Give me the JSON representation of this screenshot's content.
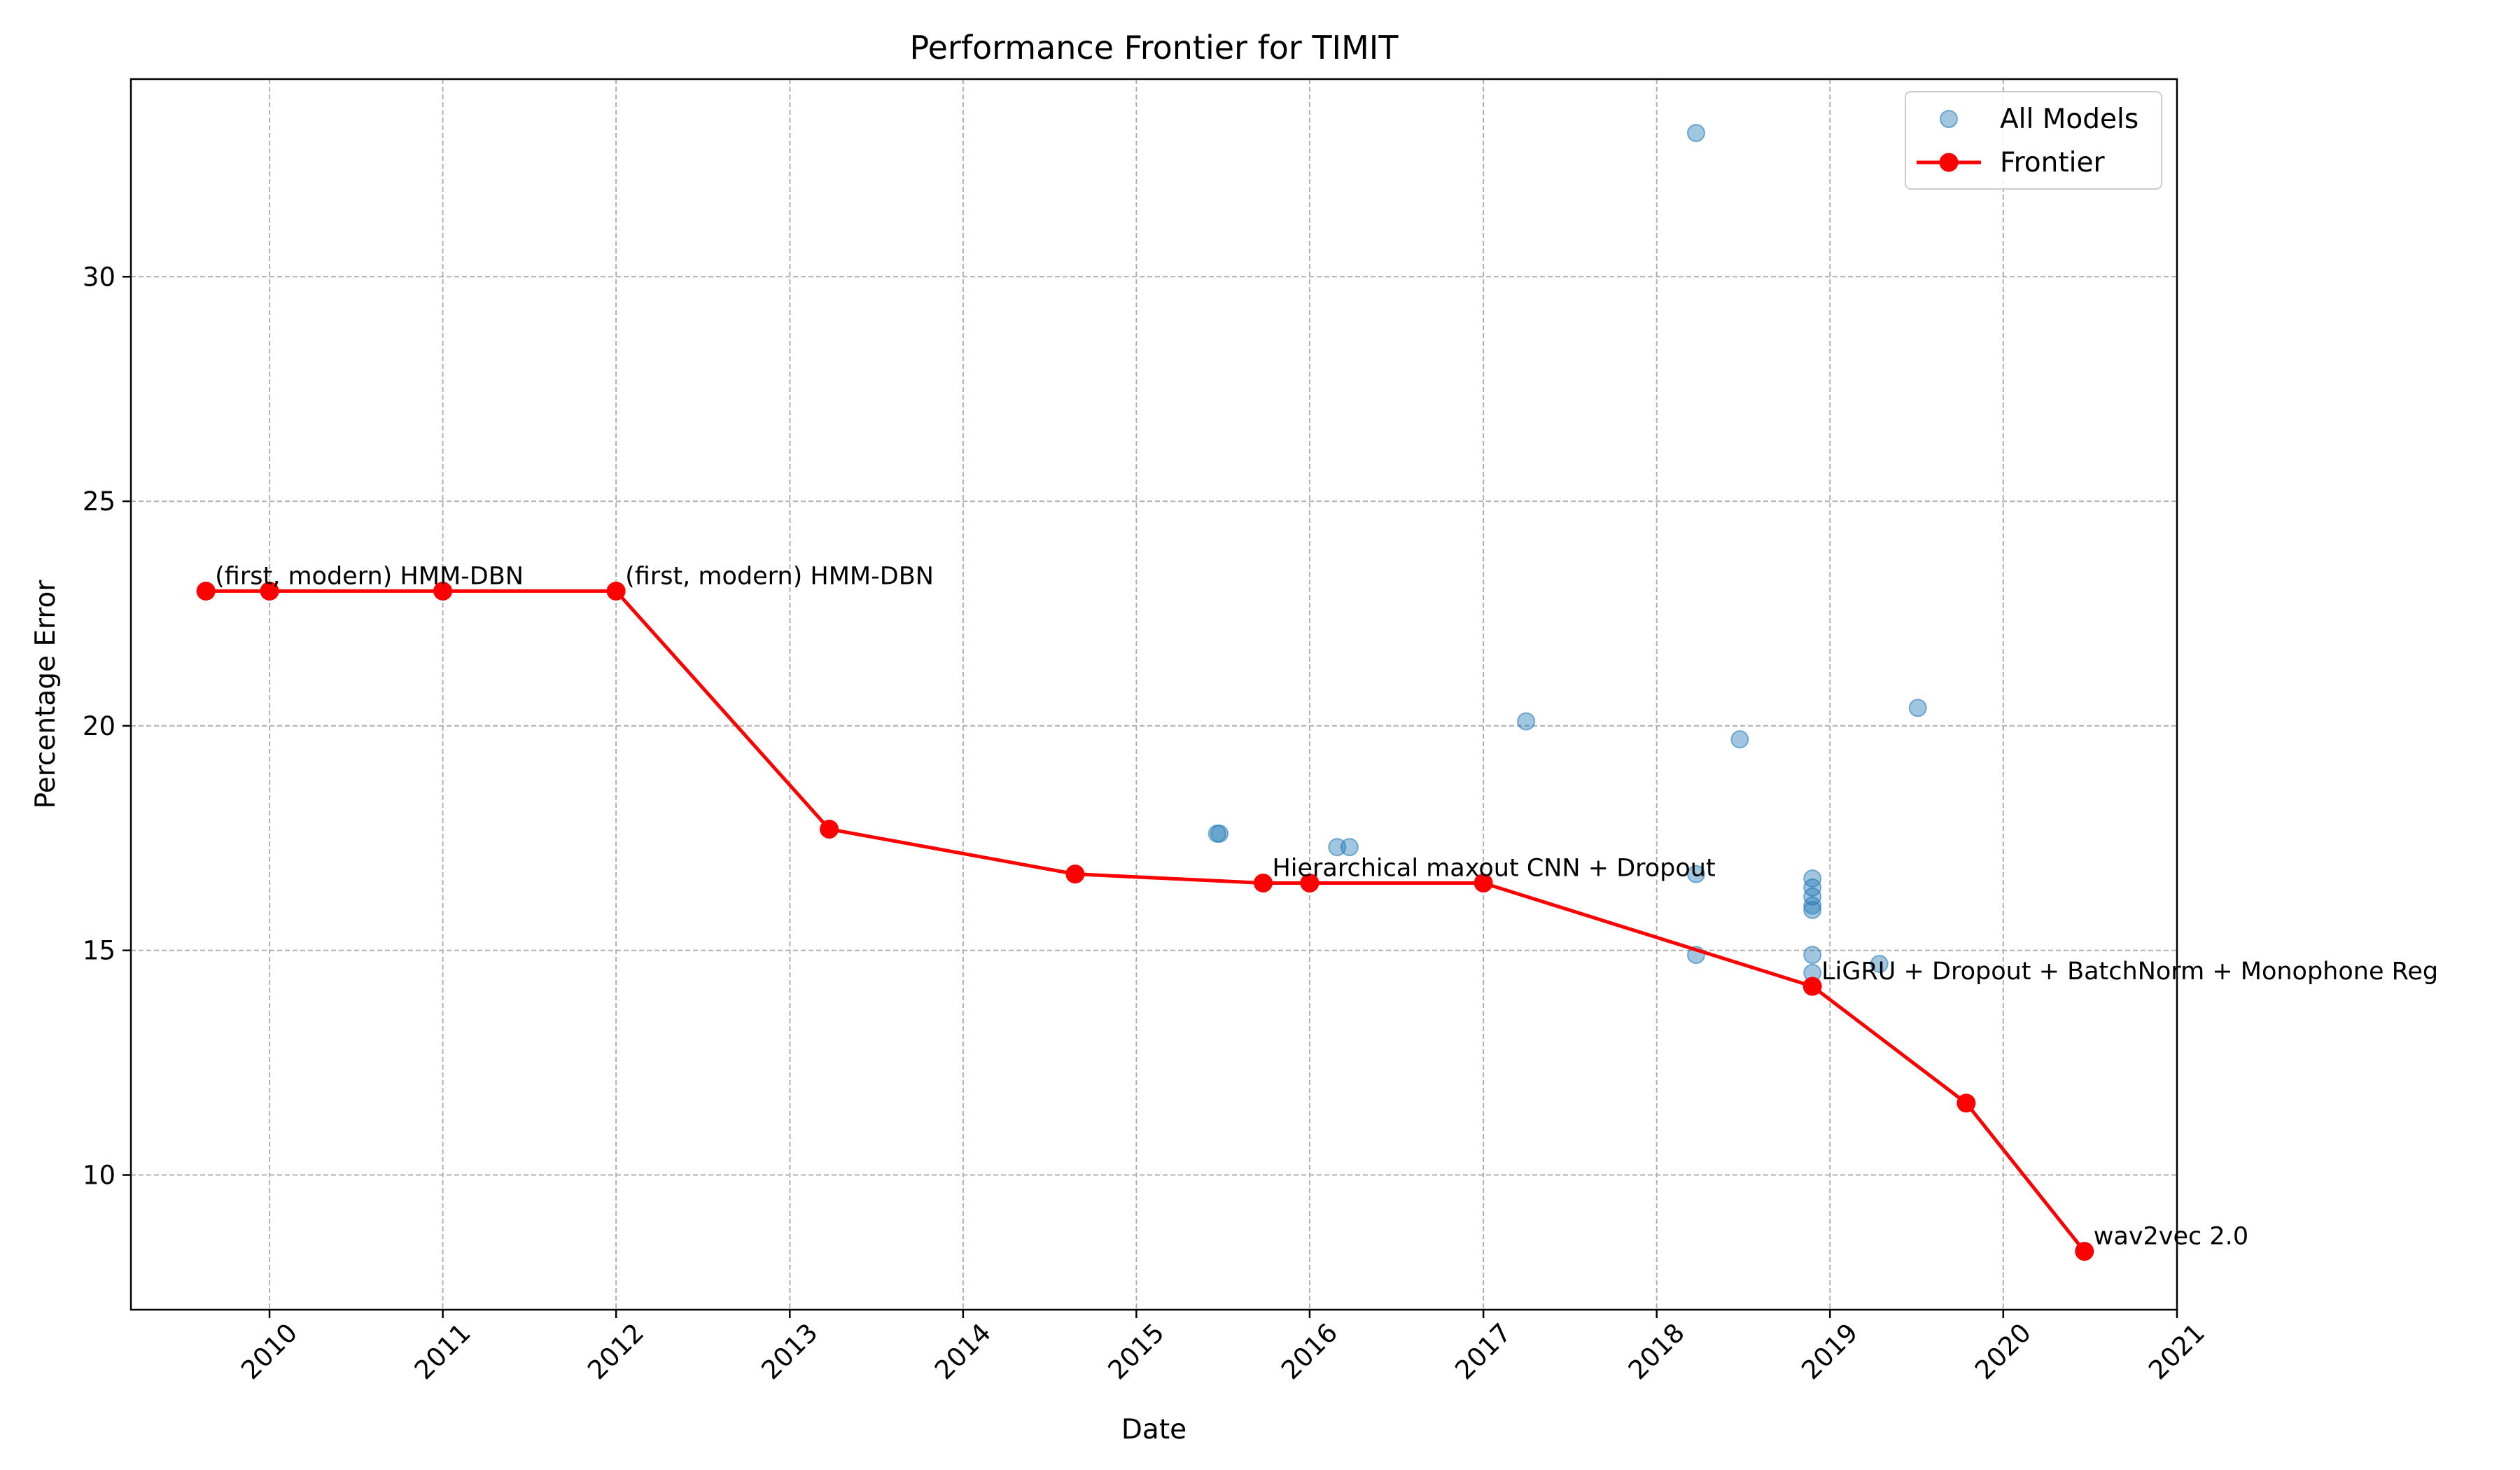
{
  "chart_data": {
    "type": "scatter",
    "title": "Performance Frontier for TIMIT",
    "xlabel": "Date",
    "ylabel": "Percentage Error",
    "xlim": [
      "2009-03-15",
      "2021-01-01"
    ],
    "ylim": [
      7,
      34.4
    ],
    "x_ticks": [
      "2010",
      "2011",
      "2012",
      "2013",
      "2014",
      "2015",
      "2016",
      "2017",
      "2018",
      "2019",
      "2020",
      "2021"
    ],
    "y_ticks": [
      10,
      15,
      20,
      25,
      30
    ],
    "grid": true,
    "legend_position": "top-right",
    "series": [
      {
        "name": "All Models",
        "kind": "scatter",
        "color": "#1f77b4",
        "points": [
          {
            "x": "2015-06-20",
            "y": 17.6
          },
          {
            "x": "2015-06-25",
            "y": 17.6
          },
          {
            "x": "2016-02-28",
            "y": 17.3
          },
          {
            "x": "2016-03-25",
            "y": 17.3
          },
          {
            "x": "2017-04-01",
            "y": 20.1
          },
          {
            "x": "2018-03-25",
            "y": 33.2
          },
          {
            "x": "2018-03-25",
            "y": 16.7
          },
          {
            "x": "2018-03-25",
            "y": 14.9
          },
          {
            "x": "2018-06-25",
            "y": 19.7
          },
          {
            "x": "2018-11-25",
            "y": 16.6
          },
          {
            "x": "2018-11-25",
            "y": 16.4
          },
          {
            "x": "2018-11-25",
            "y": 16.2
          },
          {
            "x": "2018-11-25",
            "y": 16.0
          },
          {
            "x": "2018-11-25",
            "y": 15.9
          },
          {
            "x": "2018-11-25",
            "y": 14.9
          },
          {
            "x": "2018-11-25",
            "y": 14.5
          },
          {
            "x": "2019-04-15",
            "y": 14.7
          },
          {
            "x": "2019-07-05",
            "y": 20.4
          }
        ]
      },
      {
        "name": "Frontier",
        "kind": "line",
        "color": "#ff0000",
        "points": [
          {
            "x": "2009-08-20",
            "y": 23.0
          },
          {
            "x": "2010-01-01",
            "y": 23.0
          },
          {
            "x": "2011-01-01",
            "y": 23.0
          },
          {
            "x": "2012-01-01",
            "y": 23.0
          },
          {
            "x": "2013-03-25",
            "y": 17.7
          },
          {
            "x": "2014-08-25",
            "y": 16.7
          },
          {
            "x": "2015-09-25",
            "y": 16.5
          },
          {
            "x": "2016-01-01",
            "y": 16.5
          },
          {
            "x": "2017-01-01",
            "y": 16.5
          },
          {
            "x": "2018-11-25",
            "y": 14.2
          },
          {
            "x": "2019-10-15",
            "y": 11.6
          },
          {
            "x": "2020-06-20",
            "y": 8.3
          }
        ]
      }
    ],
    "annotations": [
      {
        "text": "(first, modern) HMM-DBN",
        "x": "2009-08-20",
        "y": 23.0
      },
      {
        "text": "(first, modern) HMM-DBN",
        "x": "2012-01-01",
        "y": 23.0
      },
      {
        "text": "Hierarchical maxout CNN + Dropout",
        "x": "2015-09-25",
        "y": 16.5
      },
      {
        "text": "LiGRU + Dropout + BatchNorm + Monophone Reg",
        "x": "2018-11-25",
        "y": 14.2
      },
      {
        "text": "wav2vec 2.0",
        "x": "2020-06-20",
        "y": 8.3
      }
    ]
  }
}
